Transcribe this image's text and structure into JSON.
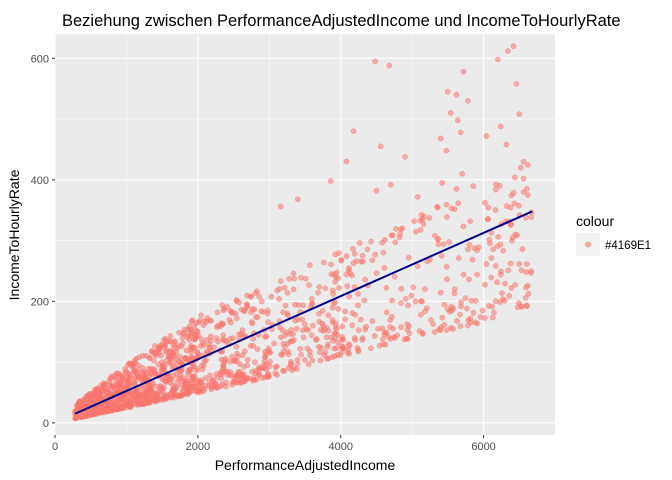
{
  "chart_data": {
    "type": "scatter",
    "title": "Beziehung zwischen PerformanceAdjustedIncome und IncomeToHourlyRate",
    "xlabel": "PerformanceAdjustedIncome",
    "ylabel": "IncomeToHourlyRate",
    "xlim": [
      0,
      7000
    ],
    "ylim": [
      -20,
      640
    ],
    "x_ticks": [
      0,
      2000,
      4000,
      6000
    ],
    "y_ticks": [
      0,
      200,
      400,
      600
    ],
    "x_tick_labels": [
      "0",
      "2000",
      "4000",
      "6000"
    ],
    "y_tick_labels": [
      "0",
      "200",
      "400",
      "600"
    ],
    "grid": true,
    "legend": {
      "title": "colour",
      "placement": "right",
      "entries": [
        {
          "label": "#4169E1",
          "color": "#F8766D"
        }
      ]
    },
    "point_color": "#F8766D",
    "point_opacity": 0.55,
    "points_estimated_count": 1500,
    "trend_line": {
      "color": "#00008B",
      "x": [
        280,
        6680
      ],
      "y": [
        15,
        348
      ]
    },
    "series": [
      {
        "name": "#4169E1",
        "points": [
          [
            4480,
            595
          ],
          [
            4680,
            588
          ],
          [
            5720,
            578
          ],
          [
            6340,
            612
          ],
          [
            6420,
            620
          ],
          [
            6200,
            598
          ],
          [
            6460,
            558
          ],
          [
            5620,
            540
          ],
          [
            5500,
            545
          ],
          [
            5780,
            530
          ],
          [
            5540,
            510
          ],
          [
            5640,
            498
          ],
          [
            5400,
            468
          ],
          [
            5680,
            478
          ],
          [
            6040,
            472
          ],
          [
            6240,
            488
          ],
          [
            6500,
            508
          ],
          [
            6320,
            458
          ],
          [
            4180,
            480
          ],
          [
            4560,
            455
          ],
          [
            4080,
            430
          ],
          [
            4900,
            438
          ],
          [
            5480,
            448
          ],
          [
            5700,
            410
          ],
          [
            5420,
            395
          ],
          [
            5620,
            385
          ],
          [
            6520,
            420
          ],
          [
            6560,
            402
          ],
          [
            4700,
            392
          ],
          [
            3860,
            398
          ],
          [
            4500,
            382
          ],
          [
            5080,
            372
          ],
          [
            3400,
            368
          ],
          [
            3160,
            356
          ],
          [
            6560,
            380
          ],
          [
            6620,
            375
          ]
        ],
        "bands": [
          {
            "x0": 280,
            "x1": 1000,
            "yLowA": 7,
            "yLowB": 25,
            "yHighA": 30,
            "yHighB": 95,
            "n": 380
          },
          {
            "x0": 1000,
            "x1": 2000,
            "yLowA": 25,
            "yLowB": 50,
            "yHighA": 95,
            "yHighB": 175,
            "n": 440
          },
          {
            "x0": 2000,
            "x1": 3000,
            "yLowA": 50,
            "yLowB": 75,
            "yHighA": 175,
            "yHighB": 230,
            "n": 230
          },
          {
            "x0": 3000,
            "x1": 4000,
            "yLowA": 75,
            "yLowB": 110,
            "yHighA": 230,
            "yHighB": 285,
            "n": 150
          },
          {
            "x0": 4000,
            "x1": 5000,
            "yLowA": 110,
            "yLowB": 140,
            "yHighA": 285,
            "yHighB": 340,
            "n": 110
          },
          {
            "x0": 5000,
            "x1": 6000,
            "yLowA": 140,
            "yLowB": 165,
            "yHighA": 340,
            "yHighB": 400,
            "n": 90
          },
          {
            "x0": 6000,
            "x1": 6680,
            "yLowA": 165,
            "yLowB": 195,
            "yHighA": 400,
            "yHighB": 440,
            "n": 80
          }
        ]
      }
    ]
  }
}
